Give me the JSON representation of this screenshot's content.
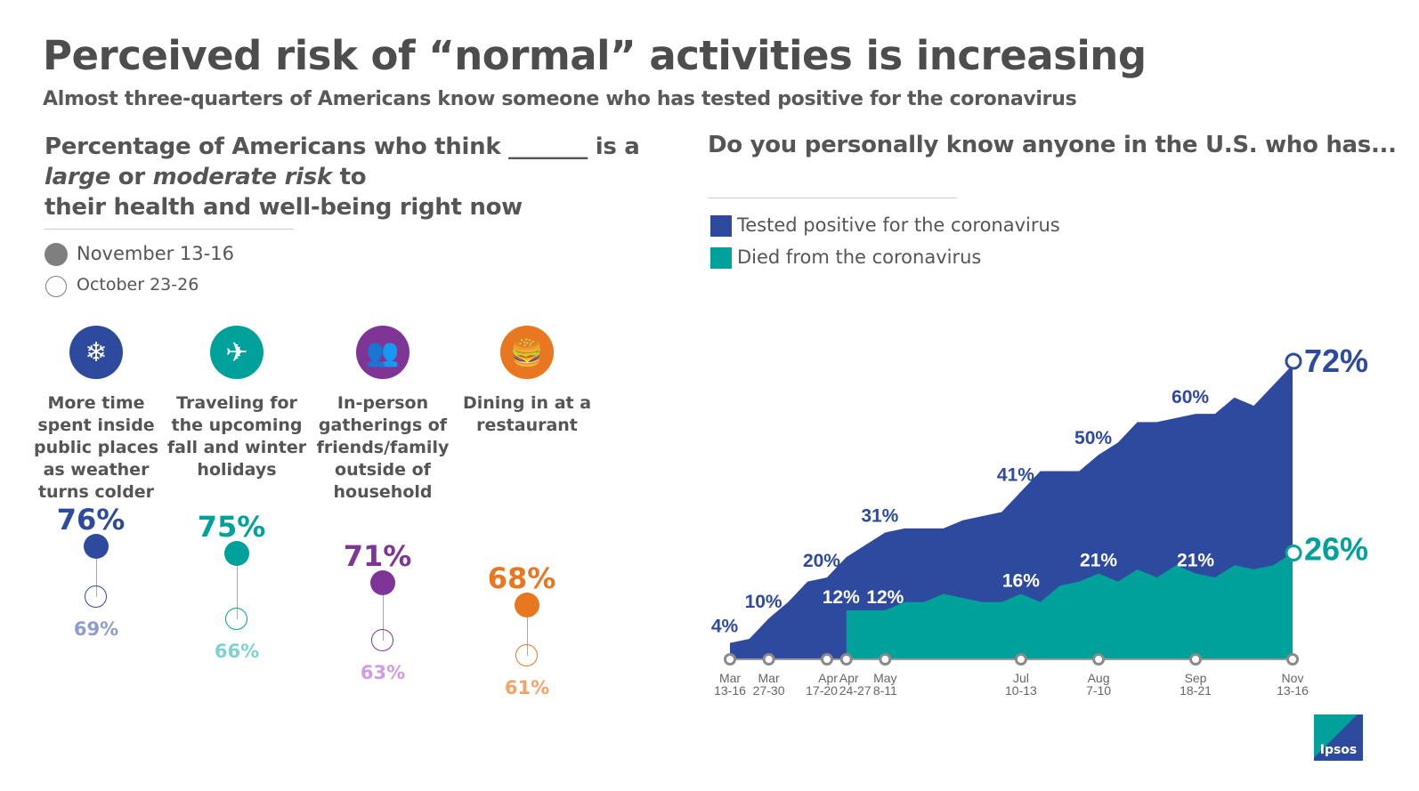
{
  "title": "Perceived risk of “normal” activities is increasing",
  "subtitle": "Almost three-quarters of Americans know someone who has tested positive for the coronavirus",
  "left": {
    "heading_line1": "Percentage of Americans who think _______ is a",
    "heading_large": "large",
    "heading_or": " or ",
    "heading_moderate": "moderate risk",
    "heading_to": " to",
    "heading_line3": "their health and well-being right now",
    "legend": [
      {
        "label": "November 13-16",
        "style": "filled",
        "color": "#7f7f7f"
      },
      {
        "label": "October 23-26",
        "style": "hollow",
        "color": "#7f7f7f"
      }
    ],
    "activities": [
      {
        "label": "More time spent inside public places as weather turns colder",
        "icon": "snowflake-icon",
        "nov": "76%",
        "oct": "69%",
        "color": "#2e4a9e",
        "light": "#8e9dd0"
      },
      {
        "label": "Traveling for the upcoming fall and winter holidays",
        "icon": "car-plane-icon",
        "nov": "75%",
        "oct": "66%",
        "color": "#00a19a",
        "light": "#7fd3cf"
      },
      {
        "label": "In-person gatherings of friends/family outside of household",
        "icon": "people-group-icon",
        "nov": "71%",
        "oct": "63%",
        "color": "#7f3596",
        "light": "#d49be5"
      },
      {
        "label": "Dining in at a restaurant",
        "icon": "fast-food-icon",
        "nov": "68%",
        "oct": "61%",
        "color": "#e87722",
        "light": "#f4a46a"
      }
    ]
  },
  "right": {
    "heading": "Do you personally know anyone in the U.S. who has...",
    "legend": [
      {
        "label": "Tested positive for the coronavirus",
        "color": "#2e4a9e"
      },
      {
        "label": "Died from the coronavirus",
        "color": "#00a19a"
      }
    ]
  },
  "chart_data": {
    "type": "area",
    "series": [
      {
        "name": "Tested positive for the coronavirus",
        "color": "#2e4a9e",
        "values": [
          4,
          5,
          10,
          14,
          19,
          20,
          25,
          28,
          31,
          32,
          32,
          32,
          34,
          35,
          36,
          41,
          46,
          46,
          46,
          50,
          53,
          58,
          58,
          59,
          60,
          60,
          64,
          62,
          67,
          72
        ]
      },
      {
        "name": "Died from the coronavirus",
        "color": "#00a19a",
        "values": [
          null,
          null,
          null,
          null,
          null,
          null,
          12,
          12,
          12,
          14,
          14,
          16,
          15,
          14,
          14,
          16,
          14,
          18,
          19,
          21,
          19,
          22,
          20,
          23,
          21,
          20,
          23,
          22,
          23,
          26
        ]
      }
    ],
    "x_ticks": [
      {
        "wave": 0,
        "line1": "Mar",
        "line2": "13-16"
      },
      {
        "wave": 2,
        "line1": "Mar",
        "line2": "27-30"
      },
      {
        "wave": 5,
        "line1": "Apr",
        "line2": "17-20"
      },
      {
        "wave": 6,
        "line1": "Apr",
        "line2": "24-27"
      },
      {
        "wave": 8,
        "line1": "May",
        "line2": "8-11"
      },
      {
        "wave": 15,
        "line1": "Jul",
        "line2": "10-13"
      },
      {
        "wave": 19,
        "line1": "Aug",
        "line2": "7-10"
      },
      {
        "wave": 24,
        "line1": "Sep",
        "line2": "18-21"
      },
      {
        "wave": 29,
        "line1": "Nov",
        "line2": "13-16"
      }
    ],
    "data_labels": [
      {
        "series": 0,
        "wave": 0,
        "text": "4%"
      },
      {
        "series": 0,
        "wave": 2,
        "text": "10%"
      },
      {
        "series": 0,
        "wave": 5,
        "text": "20%"
      },
      {
        "series": 0,
        "wave": 8,
        "text": "31%"
      },
      {
        "series": 0,
        "wave": 15,
        "text": "41%"
      },
      {
        "series": 0,
        "wave": 19,
        "text": "50%"
      },
      {
        "series": 0,
        "wave": 24,
        "text": "60%"
      },
      {
        "series": 0,
        "wave": 29,
        "text": "72%",
        "end": true
      },
      {
        "series": 1,
        "wave": 6,
        "text": "12%"
      },
      {
        "series": 1,
        "wave": 8,
        "text": "12%"
      },
      {
        "series": 1,
        "wave": 15,
        "text": "16%"
      },
      {
        "series": 1,
        "wave": 19,
        "text": "21%"
      },
      {
        "series": 1,
        "wave": 24,
        "text": "21%"
      },
      {
        "series": 1,
        "wave": 29,
        "text": "26%",
        "end": true
      }
    ],
    "ylim": [
      0,
      72
    ]
  },
  "logo": {
    "text": "Ipsos"
  }
}
